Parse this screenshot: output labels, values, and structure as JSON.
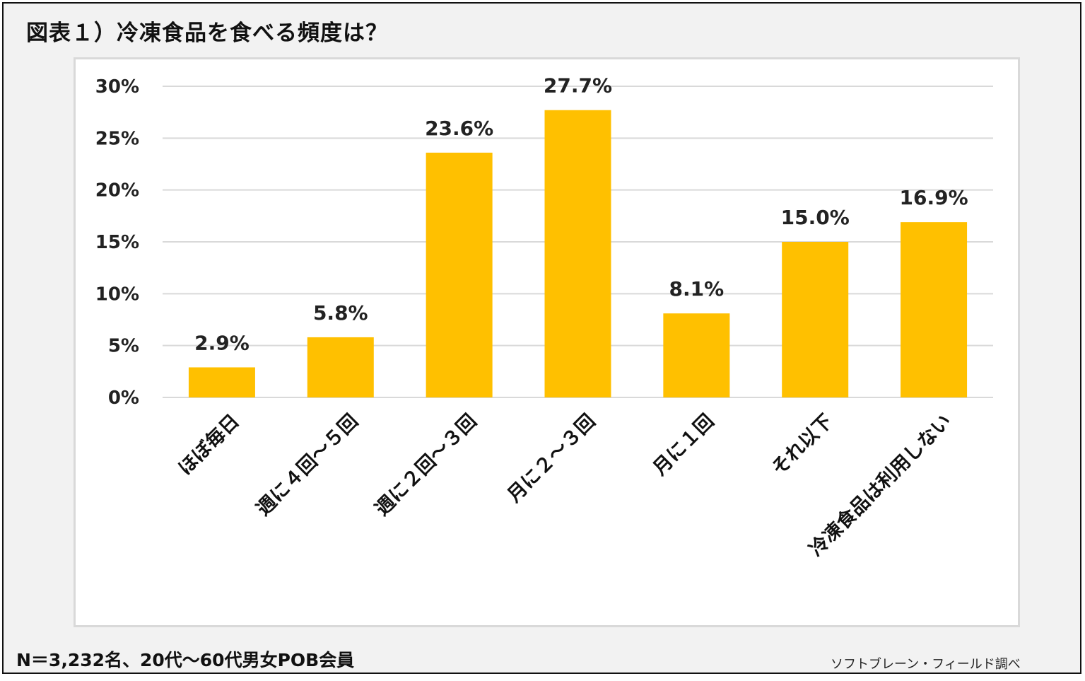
{
  "title": "図表１）冷凍食品を食べる頻度は？",
  "note": "N＝3,232名、20代～60代男女POB会員",
  "source": "ソフトブレーン・フィールド調べ",
  "colors": {
    "bar": "#FFC000",
    "grid": "#d9d9d9",
    "background": "#f2f2f2"
  },
  "chart_data": {
    "type": "bar",
    "title": "",
    "xlabel": "",
    "ylabel": "",
    "categories": [
      "ほぼ毎日",
      "週に４回～５回",
      "週に２回～３回",
      "月に２～３回",
      "月に１回",
      "それ以下",
      "冷凍食品は利用しない"
    ],
    "values": [
      2.9,
      5.8,
      23.6,
      27.7,
      8.1,
      15.0,
      16.9
    ],
    "data_labels": [
      "2.9%",
      "5.8%",
      "23.6%",
      "27.7%",
      "8.1%",
      "15.0%",
      "16.9%"
    ],
    "ylim": [
      0,
      30
    ],
    "yticks": [
      0,
      5,
      10,
      15,
      20,
      25,
      30
    ],
    "ytick_labels": [
      "0%",
      "5%",
      "10%",
      "15%",
      "20%",
      "25%",
      "30%"
    ],
    "grid": true,
    "legend": "none"
  }
}
